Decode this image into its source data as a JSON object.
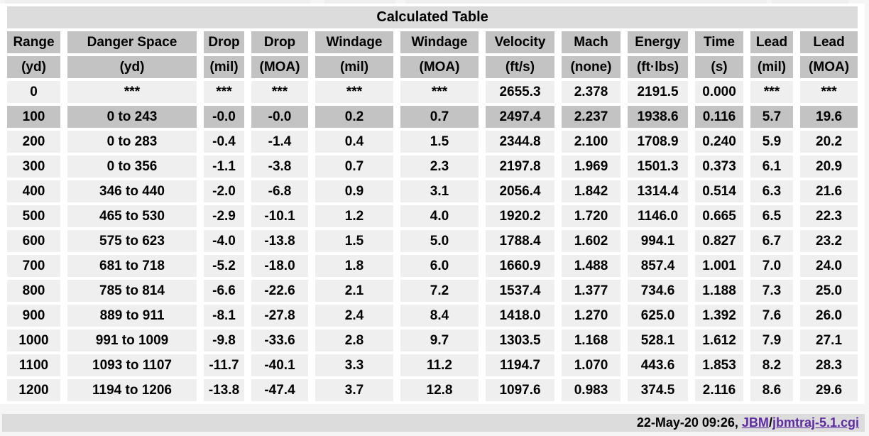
{
  "title_bar": {
    "label": "Calculated Table"
  },
  "columns": [
    {
      "id": "range",
      "label": "Range",
      "unit": "(yd)"
    },
    {
      "id": "danger-space",
      "label": "Danger Space",
      "unit": "(yd)"
    },
    {
      "id": "drop-mil",
      "label": "Drop",
      "unit": "(mil)"
    },
    {
      "id": "drop-moa",
      "label": "Drop",
      "unit": "(MOA)"
    },
    {
      "id": "windage-mil",
      "label": "Windage",
      "unit": "(mil)"
    },
    {
      "id": "windage-moa",
      "label": "Windage",
      "unit": "(MOA)"
    },
    {
      "id": "velocity",
      "label": "Velocity",
      "unit": "(ft/s)"
    },
    {
      "id": "mach",
      "label": "Mach",
      "unit": "(none)"
    },
    {
      "id": "energy",
      "label": "Energy",
      "unit": "(ft·lbs)"
    },
    {
      "id": "time",
      "label": "Time",
      "unit": "(s)"
    },
    {
      "id": "lead-mil",
      "label": "Lead",
      "unit": "(mil)"
    },
    {
      "id": "lead-moa",
      "label": "Lead",
      "unit": "(MOA)"
    }
  ],
  "rows": [
    {
      "highlight": false,
      "cells": [
        "0",
        "***",
        "***",
        "***",
        "***",
        "***",
        "2655.3",
        "2.378",
        "2191.5",
        "0.000",
        "***",
        "***"
      ]
    },
    {
      "highlight": true,
      "cells": [
        "100",
        "0 to 243",
        "-0.0",
        "-0.0",
        "0.2",
        "0.7",
        "2497.4",
        "2.237",
        "1938.6",
        "0.116",
        "5.7",
        "19.6"
      ]
    },
    {
      "highlight": false,
      "cells": [
        "200",
        "0 to 283",
        "-0.4",
        "-1.4",
        "0.4",
        "1.5",
        "2344.8",
        "2.100",
        "1708.9",
        "0.240",
        "5.9",
        "20.2"
      ]
    },
    {
      "highlight": false,
      "cells": [
        "300",
        "0 to 356",
        "-1.1",
        "-3.8",
        "0.7",
        "2.3",
        "2197.8",
        "1.969",
        "1501.3",
        "0.373",
        "6.1",
        "20.9"
      ]
    },
    {
      "highlight": false,
      "cells": [
        "400",
        "346 to 440",
        "-2.0",
        "-6.8",
        "0.9",
        "3.1",
        "2056.4",
        "1.842",
        "1314.4",
        "0.514",
        "6.3",
        "21.6"
      ]
    },
    {
      "highlight": false,
      "cells": [
        "500",
        "465 to 530",
        "-2.9",
        "-10.1",
        "1.2",
        "4.0",
        "1920.2",
        "1.720",
        "1146.0",
        "0.665",
        "6.5",
        "22.3"
      ]
    },
    {
      "highlight": false,
      "cells": [
        "600",
        "575 to 623",
        "-4.0",
        "-13.8",
        "1.5",
        "5.0",
        "1788.4",
        "1.602",
        "994.1",
        "0.827",
        "6.7",
        "23.2"
      ]
    },
    {
      "highlight": false,
      "cells": [
        "700",
        "681 to 718",
        "-5.2",
        "-18.0",
        "1.8",
        "6.0",
        "1660.9",
        "1.488",
        "857.4",
        "1.001",
        "7.0",
        "24.0"
      ]
    },
    {
      "highlight": false,
      "cells": [
        "800",
        "785 to 814",
        "-6.6",
        "-22.6",
        "2.1",
        "7.2",
        "1537.4",
        "1.377",
        "734.6",
        "1.188",
        "7.3",
        "25.0"
      ]
    },
    {
      "highlight": false,
      "cells": [
        "900",
        "889 to 911",
        "-8.1",
        "-27.8",
        "2.4",
        "8.4",
        "1418.0",
        "1.270",
        "625.0",
        "1.392",
        "7.6",
        "26.0"
      ]
    },
    {
      "highlight": false,
      "cells": [
        "1000",
        "991 to 1009",
        "-9.8",
        "-33.6",
        "2.8",
        "9.7",
        "1303.5",
        "1.168",
        "528.1",
        "1.612",
        "7.9",
        "27.1"
      ]
    },
    {
      "highlight": false,
      "cells": [
        "1100",
        "1093 to 1107",
        "-11.7",
        "-40.1",
        "3.3",
        "11.2",
        "1194.7",
        "1.070",
        "443.6",
        "1.853",
        "8.2",
        "28.3"
      ]
    },
    {
      "highlight": false,
      "cells": [
        "1200",
        "1194 to 1206",
        "-13.8",
        "-47.4",
        "3.7",
        "12.8",
        "1097.6",
        "0.983",
        "374.5",
        "2.116",
        "8.6",
        "29.6"
      ]
    }
  ],
  "footer": {
    "timestamp": "22-May-20 09:26, ",
    "link_jbm": "JBM",
    "separator": "/",
    "link_script": "jbmtraj-5.1.cgi"
  },
  "colors": {
    "page_bg": "#f5f5f5",
    "gap_bg": "#ffffff",
    "title_bg": "#dcdcdc",
    "header_bg": "#c3c3c3",
    "cell_bg": "#efefef",
    "highlight_bg": "#c3c3c3",
    "footer_bg": "#dcdcdc",
    "link": "#5e2ca0"
  }
}
